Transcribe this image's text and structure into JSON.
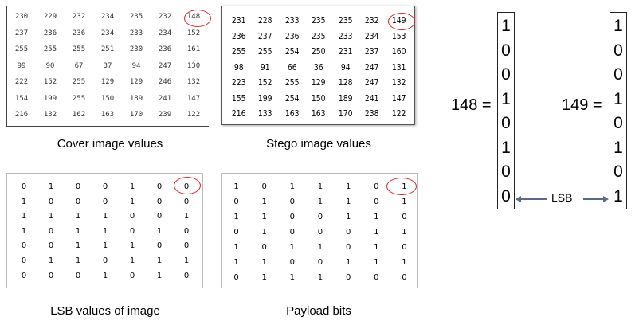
{
  "cover": {
    "caption": "Cover image values",
    "rows": [
      [
        "230",
        "229",
        "232",
        "234",
        "235",
        "232",
        "148"
      ],
      [
        "237",
        "236",
        "236",
        "234",
        "233",
        "234",
        "152"
      ],
      [
        "255",
        "255",
        "255",
        "251",
        "230",
        "236",
        "161"
      ],
      [
        "99",
        "90",
        "67",
        "37",
        "94",
        "247",
        "130"
      ],
      [
        "222",
        "152",
        "255",
        "129",
        "129",
        "246",
        "132"
      ],
      [
        "154",
        "199",
        "255",
        "150",
        "189",
        "241",
        "147"
      ],
      [
        "216",
        "132",
        "162",
        "163",
        "170",
        "239",
        "122"
      ]
    ]
  },
  "stego": {
    "caption": "Stego image values",
    "rows": [
      [
        "231",
        "228",
        "233",
        "235",
        "235",
        "232",
        "149"
      ],
      [
        "236",
        "237",
        "236",
        "235",
        "233",
        "234",
        "153"
      ],
      [
        "255",
        "255",
        "254",
        "250",
        "231",
        "237",
        "160"
      ],
      [
        "98",
        "91",
        "66",
        "36",
        "94",
        "247",
        "131"
      ],
      [
        "223",
        "152",
        "255",
        "129",
        "128",
        "247",
        "132"
      ],
      [
        "155",
        "199",
        "254",
        "150",
        "189",
        "241",
        "147"
      ],
      [
        "216",
        "133",
        "163",
        "163",
        "170",
        "238",
        "122"
      ]
    ]
  },
  "lsb": {
    "caption": "LSB values of image",
    "rows": [
      [
        "0",
        "1",
        "0",
        "0",
        "1",
        "0",
        "0"
      ],
      [
        "1",
        "0",
        "0",
        "0",
        "1",
        "0",
        "0"
      ],
      [
        "1",
        "1",
        "1",
        "1",
        "0",
        "0",
        "1"
      ],
      [
        "1",
        "0",
        "1",
        "1",
        "0",
        "1",
        "0"
      ],
      [
        "0",
        "0",
        "1",
        "1",
        "1",
        "0",
        "0"
      ],
      [
        "0",
        "1",
        "1",
        "0",
        "1",
        "1",
        "1"
      ],
      [
        "0",
        "0",
        "0",
        "1",
        "0",
        "1",
        "0"
      ]
    ]
  },
  "payload": {
    "caption": "Payload bits",
    "rows": [
      [
        "1",
        "0",
        "1",
        "1",
        "1",
        "0",
        "1"
      ],
      [
        "0",
        "1",
        "0",
        "1",
        "1",
        "0",
        "1"
      ],
      [
        "1",
        "1",
        "0",
        "0",
        "1",
        "1",
        "0"
      ],
      [
        "0",
        "1",
        "0",
        "0",
        "0",
        "1",
        "1"
      ],
      [
        "1",
        "0",
        "1",
        "1",
        "0",
        "1",
        "0"
      ],
      [
        "1",
        "1",
        "0",
        "0",
        "1",
        "1",
        "1"
      ],
      [
        "0",
        "1",
        "1",
        "1",
        "0",
        "0",
        "0"
      ]
    ]
  },
  "binary": {
    "left": {
      "label": "148 =",
      "bits": [
        "1",
        "0",
        "0",
        "1",
        "0",
        "1",
        "0",
        "0"
      ]
    },
    "right": {
      "label": "149 =",
      "bits": [
        "1",
        "0",
        "0",
        "1",
        "0",
        "1",
        "0",
        "1"
      ]
    },
    "lsb_label": "LSB"
  },
  "colors": {
    "highlight": "#d9242b",
    "arrow": "#5b6b85"
  }
}
